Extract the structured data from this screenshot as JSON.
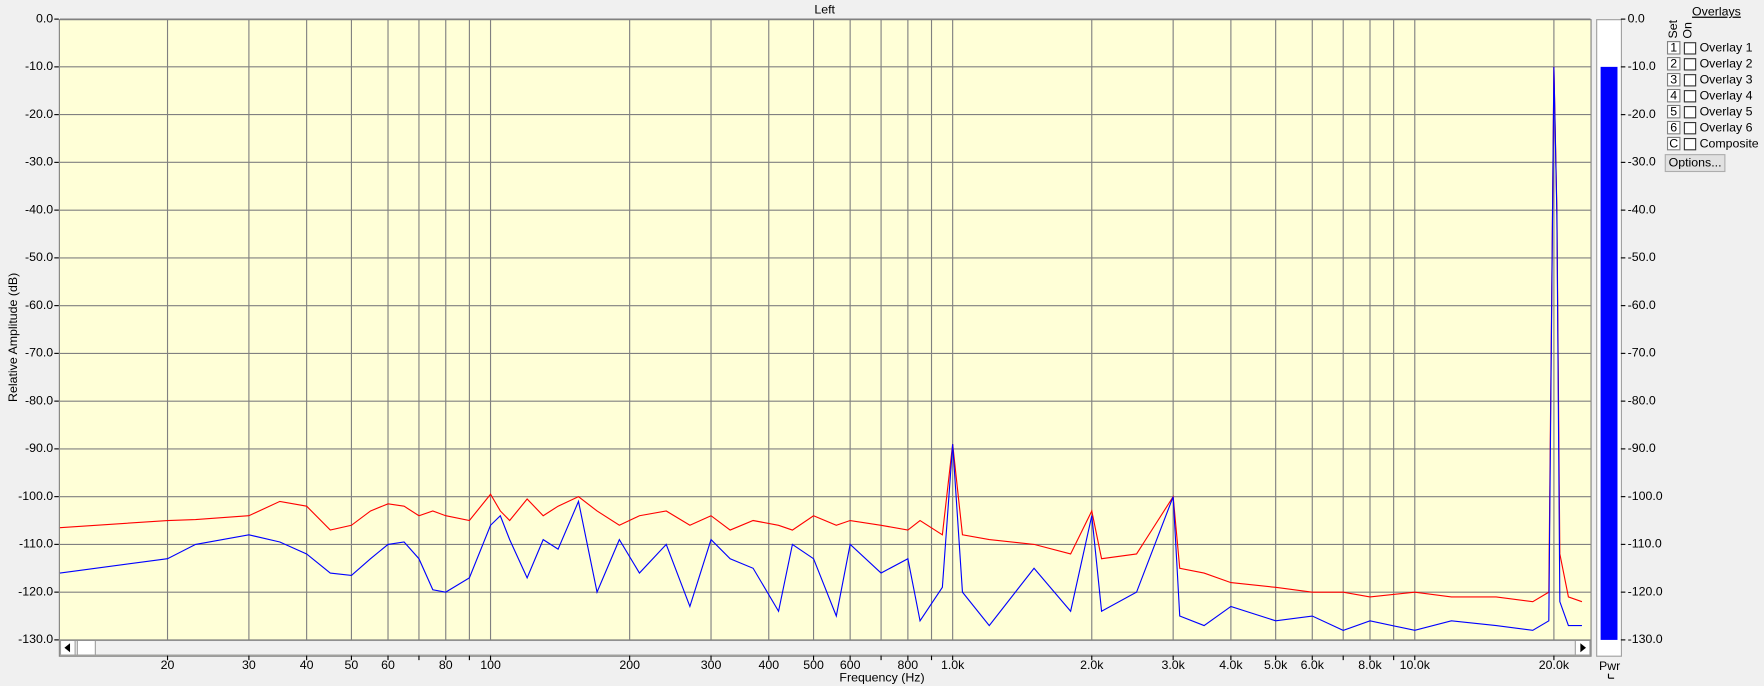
{
  "chart_data": {
    "type": "line",
    "title": "Left",
    "x_label": "Frequency (Hz)",
    "y_label": "Relative Amplitude (dB)",
    "xscale": "log",
    "grid": true,
    "xlim": [
      11.7,
      24000
    ],
    "ylim": [
      -130,
      0
    ],
    "xticks": [
      20,
      30,
      40,
      50,
      60,
      {
        "value": 70,
        "label": null
      },
      80,
      {
        "value": 90,
        "label": null
      },
      100,
      200,
      300,
      400,
      500,
      600,
      {
        "value": 700,
        "label": null
      },
      800,
      {
        "value": 900,
        "label": null
      },
      {
        "value": 1000,
        "label": "1.0k"
      },
      {
        "value": 2000,
        "label": "2.0k"
      },
      {
        "value": 3000,
        "label": "3.0k"
      },
      {
        "value": 4000,
        "label": "4.0k"
      },
      {
        "value": 5000,
        "label": "5.0k"
      },
      {
        "value": 6000,
        "label": "6.0k"
      },
      {
        "value": 7000,
        "label": null
      },
      {
        "value": 8000,
        "label": "8.0k"
      },
      {
        "value": 9000,
        "label": null
      },
      {
        "value": 10000,
        "label": "10.0k"
      },
      {
        "value": 20000,
        "label": "20.0k"
      }
    ],
    "yticks": [
      {
        "value": 0,
        "label": "0.0"
      },
      {
        "value": -10,
        "label": "-10.0"
      },
      {
        "value": -20,
        "label": "-20.0"
      },
      {
        "value": -30,
        "label": "-30.0"
      },
      {
        "value": -40,
        "label": "-40.0"
      },
      {
        "value": -50,
        "label": "-50.0"
      },
      {
        "value": -60,
        "label": "-60.0"
      },
      {
        "value": -70,
        "label": "-70.0"
      },
      {
        "value": -80,
        "label": "-80.0"
      },
      {
        "value": -90,
        "label": "-90.0"
      },
      {
        "value": -100,
        "label": "-100.0"
      },
      {
        "value": -110,
        "label": "-110.0"
      },
      {
        "value": -120,
        "label": "-120.0"
      },
      {
        "value": -130,
        "label": "-130.0"
      }
    ],
    "x": [
      11.7,
      20,
      23,
      30,
      35,
      40,
      45,
      50,
      55,
      60,
      65,
      70,
      75,
      80,
      90,
      100,
      105,
      110,
      120,
      130,
      140,
      155,
      170,
      190,
      210,
      240,
      270,
      300,
      330,
      370,
      420,
      450,
      500,
      560,
      600,
      700,
      800,
      850,
      950,
      1000,
      1050,
      1200,
      1500,
      1800,
      2000,
      2100,
      2500,
      3000,
      3100,
      3500,
      4000,
      5000,
      6000,
      7000,
      8000,
      10000,
      12000,
      15000,
      18000,
      19500,
      20000,
      20300,
      20600,
      21500,
      23000
    ],
    "series": [
      {
        "color": "#ff0000",
        "values": [
          -106.5,
          -105,
          -104.8,
          -104,
          -101,
          -102,
          -107,
          -106,
          -103,
          -101.5,
          -102,
          -104,
          -103,
          -104,
          -105,
          -99.5,
          -103,
          -105,
          -100.5,
          -104,
          -102,
          -100,
          -103,
          -106,
          -104,
          -103,
          -106,
          -104,
          -107,
          -105,
          -106,
          -107,
          -104,
          -106,
          -105,
          -106,
          -107,
          -105,
          -108,
          -89,
          -108,
          -109,
          -110,
          -112,
          -103,
          -113,
          -112,
          -100,
          -115,
          -116,
          -118,
          -119,
          -120,
          -120,
          -121,
          -120,
          -121,
          -121,
          -122,
          -120,
          -10,
          -40,
          -112,
          -121,
          -122
        ]
      },
      {
        "color": "#0000ff",
        "values": [
          -116,
          -113,
          -110,
          -108,
          -109.5,
          -112,
          -116,
          -116.5,
          -113,
          -110,
          -109.5,
          -113,
          -119.5,
          -120,
          -117,
          -106,
          -104,
          -109,
          -117,
          -109,
          -111,
          -101,
          -120,
          -109,
          -116,
          -110,
          -123,
          -109,
          -113,
          -115,
          -124,
          -110,
          -113,
          -125,
          -110,
          -116,
          -113,
          -126,
          -119,
          -89,
          -120,
          -127,
          -115,
          -124,
          -104,
          -124,
          -120,
          -100,
          -125,
          -127,
          -123,
          -126,
          -125,
          -128,
          -126,
          -128,
          -126,
          -127,
          -128,
          -126,
          -10,
          -41,
          -122,
          -127,
          -127
        ]
      }
    ],
    "meter": {
      "label": "Pwr",
      "value": -10,
      "color": "#0000ff"
    }
  },
  "overlays": {
    "title": "Overlays",
    "set_label": "Set",
    "on_label": "On",
    "items": [
      {
        "set": "1",
        "name": "Overlay 1",
        "color": "#1a9a1a"
      },
      {
        "set": "2",
        "name": "Overlay 2",
        "color": "#20a8b0"
      },
      {
        "set": "3",
        "name": "Overlay 3",
        "color": "#9a1a9a"
      },
      {
        "set": "4",
        "name": "Overlay 4",
        "color": "#e020e0"
      },
      {
        "set": "5",
        "name": "Overlay 5",
        "color": "#a05020"
      },
      {
        "set": "6",
        "name": "Overlay 6",
        "color": "#f08050"
      },
      {
        "set": "C",
        "name": "Composite",
        "color": "#000000"
      }
    ],
    "button": "Options..."
  }
}
